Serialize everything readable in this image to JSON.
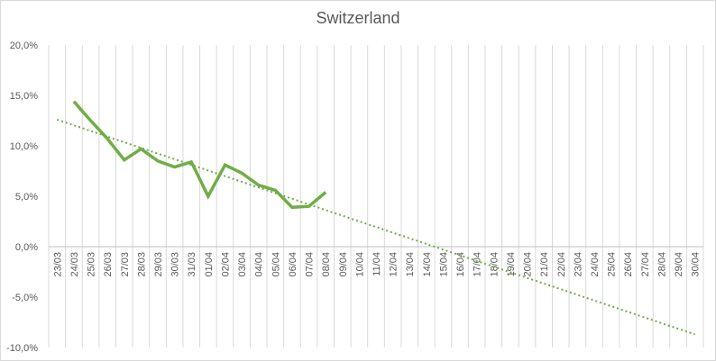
{
  "chart_data": {
    "type": "line",
    "title": "Switzerland",
    "categories": [
      "23/03",
      "24/03",
      "25/03",
      "26/03",
      "27/03",
      "28/03",
      "29/03",
      "30/03",
      "31/03",
      "01/04",
      "02/04",
      "03/04",
      "04/04",
      "05/04",
      "06/04",
      "07/04",
      "08/04",
      "09/04",
      "10/04",
      "11/04",
      "12/04",
      "13/04",
      "14/04",
      "15/04",
      "16/04",
      "17/04",
      "18/04",
      "19/04",
      "20/04",
      "21/04",
      "22/04",
      "23/04",
      "24/04",
      "25/04",
      "26/04",
      "27/04",
      "28/04",
      "29/04",
      "30/04"
    ],
    "y_ticks": [
      "-10,0%",
      "-5,0%",
      "0,0%",
      "5,0%",
      "10,0%",
      "15,0%",
      "20,0%"
    ],
    "y_tick_values": [
      -10,
      -5,
      0,
      5,
      10,
      15,
      20
    ],
    "ylim": [
      -10,
      20
    ],
    "series": [
      {
        "values": [
          null,
          14.4,
          12.5,
          10.7,
          8.6,
          9.7,
          8.5,
          7.9,
          8.4,
          5.0,
          8.1,
          7.3,
          6.1,
          5.6,
          3.9,
          4.0,
          5.4,
          null,
          null,
          null,
          null,
          null,
          null,
          null,
          null,
          null,
          null,
          null,
          null,
          null,
          null,
          null,
          null,
          null,
          null,
          null,
          null,
          null,
          null
        ],
        "color": "#70ad47",
        "style": "solid"
      },
      {
        "trendline": true,
        "type": "linear",
        "from": {
          "x": "23/03",
          "y": 12.6
        },
        "to": {
          "x": "30/04",
          "y": -8.7
        },
        "color": "#70ad47",
        "style": "dotted"
      }
    ],
    "grid": {
      "horizontal": false,
      "vertical": true
    },
    "legend": "none"
  }
}
